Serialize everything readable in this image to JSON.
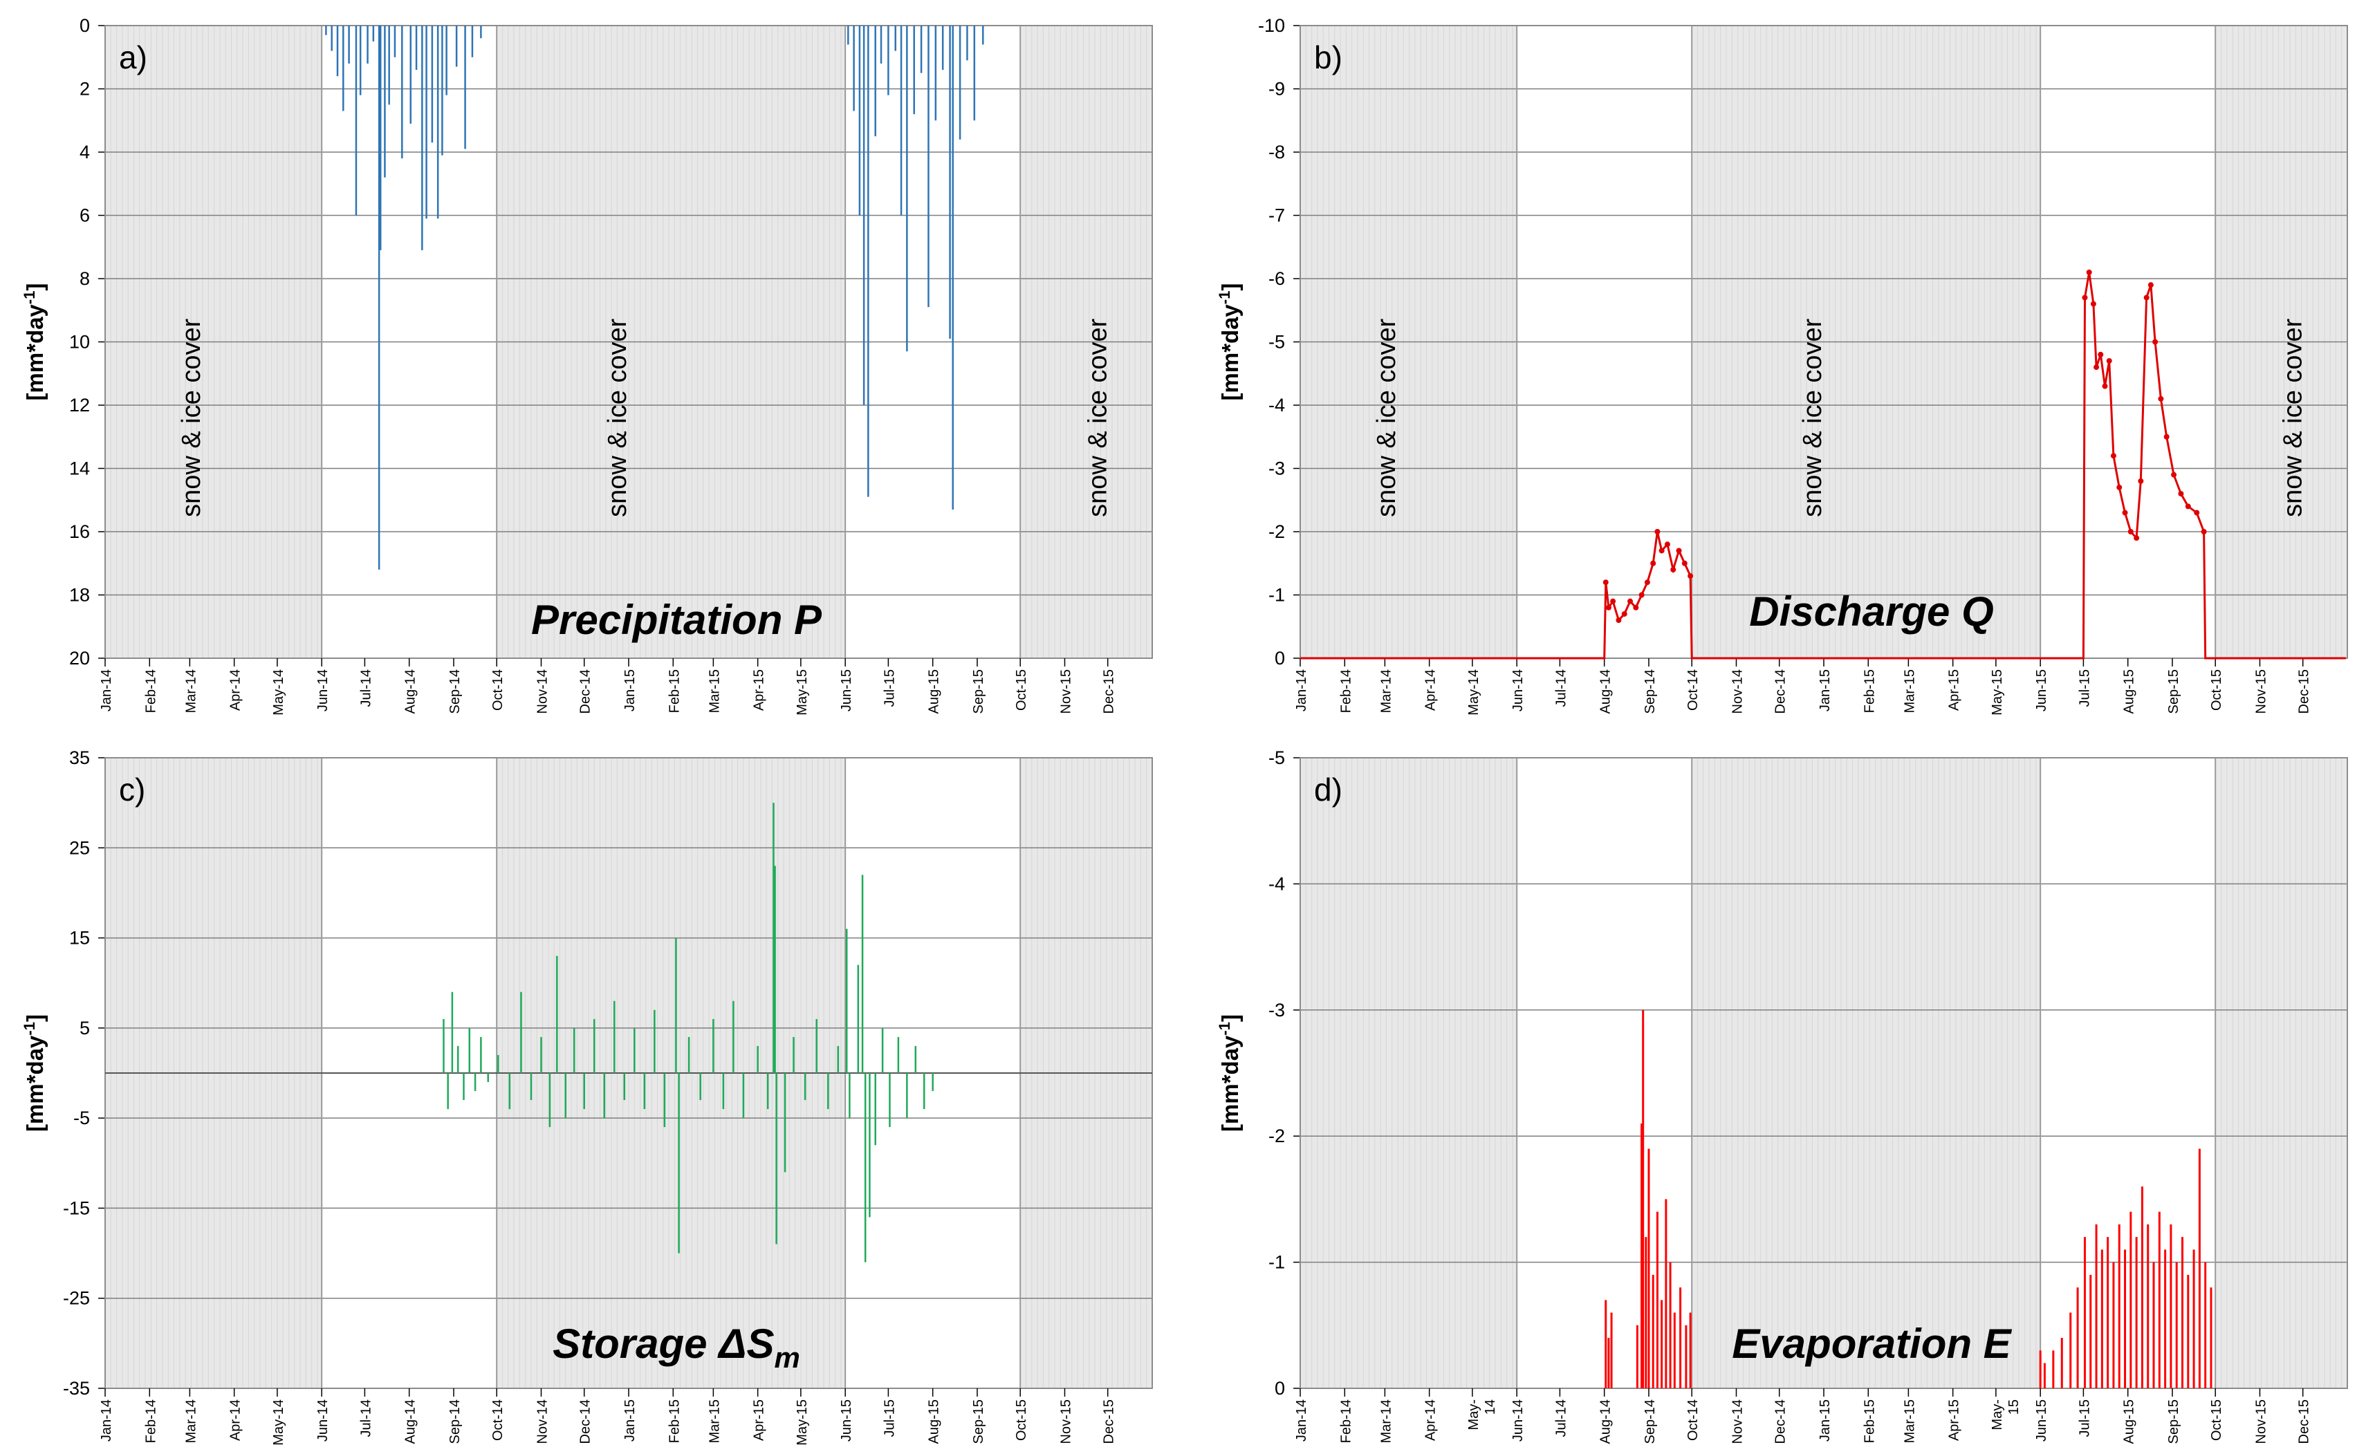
{
  "months": [
    "Jan-14",
    "Feb-14",
    "Mar-14",
    "Apr-14",
    "May-14",
    "Jun-14",
    "Jul-14",
    "Aug-14",
    "Sep-14",
    "Oct-14",
    "Nov-14",
    "Dec-14",
    "Jan-15",
    "Feb-15",
    "Mar-15",
    "Apr-15",
    "May-15",
    "Jun-15",
    "Jul-15",
    "Aug-15",
    "Sep-15",
    "Oct-15",
    "Nov-15",
    "Dec-15"
  ],
  "months_d": [
    "Jan-14",
    "Feb-14",
    "Mar-14",
    "Apr-14",
    "May-\n14",
    "Jun-14",
    "Jul-14",
    "Aug-14",
    "Sep-14",
    "Oct-14",
    "Nov-14",
    "Dec-14",
    "Jan-15",
    "Feb-15",
    "Mar-15",
    "Apr-15",
    "May-\n15",
    "Jun-15",
    "Jul-15",
    "Aug-15",
    "Sep-15",
    "Oct-15",
    "Nov-15",
    "Dec-15"
  ],
  "snow_label": "snow & ice cover",
  "ylabel": "[mm*day-1]",
  "colors": {
    "precip": "#2e75b6",
    "discharge": "#e00000",
    "storage": "#1faa59",
    "evap": "#ff0000",
    "shade": "#e8e8e8",
    "grid": "#7f7f7f"
  },
  "chart_data": [
    {
      "id": "a",
      "type": "bar",
      "panel_label": "a)",
      "title": "Precipitation P",
      "ylim": [
        0,
        20
      ],
      "yaxis_inverted": true,
      "yticks": [
        "0",
        "2",
        "4",
        "6",
        "8",
        "10",
        "12",
        "14",
        "16",
        "18",
        "20"
      ],
      "snow_periods": [
        [
          "2014-01-01",
          "2014-06-01"
        ],
        [
          "2014-10-01",
          "2015-06-01"
        ],
        [
          "2015-10-01",
          "2016-01-01"
        ]
      ],
      "snow_labels": [
        [
          "2014-03-08"
        ],
        [
          "2014-12-30"
        ],
        [
          "2015-11-30"
        ]
      ],
      "series": [
        {
          "points": [
            [
              "2014-06-04",
              0.3
            ],
            [
              "2014-06-08",
              0.8
            ],
            [
              "2014-06-12",
              1.6
            ],
            [
              "2014-06-16",
              2.7
            ],
            [
              "2014-06-20",
              1.2
            ],
            [
              "2014-06-25",
              6.0
            ],
            [
              "2014-06-28",
              2.2
            ],
            [
              "2014-07-03",
              1.2
            ],
            [
              "2014-07-07",
              0.5
            ],
            [
              "2014-07-11",
              17.2
            ],
            [
              "2014-07-12",
              7.1
            ],
            [
              "2014-07-15",
              4.8
            ],
            [
              "2014-07-18",
              2.5
            ],
            [
              "2014-07-22",
              1.0
            ],
            [
              "2014-07-27",
              4.2
            ],
            [
              "2014-08-02",
              3.1
            ],
            [
              "2014-08-06",
              1.4
            ],
            [
              "2014-08-10",
              7.1
            ],
            [
              "2014-08-13",
              6.1
            ],
            [
              "2014-08-17",
              3.7
            ],
            [
              "2014-08-21",
              6.1
            ],
            [
              "2014-08-24",
              4.1
            ],
            [
              "2014-08-27",
              2.2
            ],
            [
              "2014-09-03",
              1.3
            ],
            [
              "2014-09-09",
              3.9
            ],
            [
              "2014-09-14",
              1.0
            ],
            [
              "2014-09-20",
              0.4
            ],
            [
              "2015-06-03",
              0.6
            ],
            [
              "2015-06-07",
              2.7
            ],
            [
              "2015-06-11",
              6.0
            ],
            [
              "2015-06-14",
              12.0
            ],
            [
              "2015-06-17",
              14.9
            ],
            [
              "2015-06-22",
              3.5
            ],
            [
              "2015-06-26",
              1.2
            ],
            [
              "2015-07-01",
              2.2
            ],
            [
              "2015-07-06",
              0.8
            ],
            [
              "2015-07-10",
              6.0
            ],
            [
              "2015-07-14",
              10.3
            ],
            [
              "2015-07-19",
              2.8
            ],
            [
              "2015-07-24",
              1.5
            ],
            [
              "2015-07-29",
              8.9
            ],
            [
              "2015-08-03",
              3.0
            ],
            [
              "2015-08-08",
              1.4
            ],
            [
              "2015-08-13",
              9.9
            ],
            [
              "2015-08-15",
              15.3
            ],
            [
              "2015-08-20",
              3.6
            ],
            [
              "2015-08-25",
              1.1
            ],
            [
              "2015-08-30",
              3.0
            ],
            [
              "2015-09-05",
              0.6
            ]
          ]
        }
      ]
    },
    {
      "id": "b",
      "type": "line",
      "panel_label": "b)",
      "title": "Discharge Q",
      "ylim": [
        -10,
        0
      ],
      "yaxis_inverted": true,
      "yticks": [
        "-10",
        "-9",
        "-8",
        "-7",
        "-6",
        "-5",
        "-4",
        "-3",
        "-2",
        "-1",
        "0"
      ],
      "snow_periods": [
        [
          "2014-01-01",
          "2014-06-01"
        ],
        [
          "2014-10-01",
          "2015-06-01"
        ],
        [
          "2015-10-01",
          "2016-01-01"
        ]
      ],
      "snow_labels": [
        [
          "2014-03-08"
        ],
        [
          "2014-12-30"
        ],
        [
          "2015-11-30"
        ]
      ],
      "series": [
        {
          "points": [
            [
              "2014-01-01",
              0
            ],
            [
              "2014-08-01",
              0
            ],
            [
              "2014-08-02",
              -1.2
            ],
            [
              "2014-08-04",
              -0.8
            ],
            [
              "2014-08-07",
              -0.9
            ],
            [
              "2014-08-11",
              -0.6
            ],
            [
              "2014-08-15",
              -0.7
            ],
            [
              "2014-08-19",
              -0.9
            ],
            [
              "2014-08-23",
              -0.8
            ],
            [
              "2014-08-27",
              -1.0
            ],
            [
              "2014-08-31",
              -1.2
            ],
            [
              "2014-09-04",
              -1.5
            ],
            [
              "2014-09-07",
              -2.0
            ],
            [
              "2014-09-10",
              -1.7
            ],
            [
              "2014-09-14",
              -1.8
            ],
            [
              "2014-09-18",
              -1.4
            ],
            [
              "2014-09-22",
              -1.7
            ],
            [
              "2014-09-26",
              -1.5
            ],
            [
              "2014-09-30",
              -1.3
            ],
            [
              "2014-10-01",
              0
            ],
            [
              "2015-07-01",
              0
            ],
            [
              "2015-07-02",
              -5.7
            ],
            [
              "2015-07-05",
              -6.1
            ],
            [
              "2015-07-08",
              -5.6
            ],
            [
              "2015-07-10",
              -4.6
            ],
            [
              "2015-07-13",
              -4.8
            ],
            [
              "2015-07-16",
              -4.3
            ],
            [
              "2015-07-19",
              -4.7
            ],
            [
              "2015-07-22",
              -3.2
            ],
            [
              "2015-07-26",
              -2.7
            ],
            [
              "2015-07-30",
              -2.3
            ],
            [
              "2015-08-03",
              -2.0
            ],
            [
              "2015-08-07",
              -1.9
            ],
            [
              "2015-08-10",
              -2.8
            ],
            [
              "2015-08-14",
              -5.7
            ],
            [
              "2015-08-17",
              -5.9
            ],
            [
              "2015-08-20",
              -5.0
            ],
            [
              "2015-08-24",
              -4.1
            ],
            [
              "2015-08-28",
              -3.5
            ],
            [
              "2015-09-02",
              -2.9
            ],
            [
              "2015-09-07",
              -2.6
            ],
            [
              "2015-09-12",
              -2.4
            ],
            [
              "2015-09-18",
              -2.3
            ],
            [
              "2015-09-23",
              -2.0
            ],
            [
              "2015-09-24",
              0
            ],
            [
              "2015-12-31",
              0
            ]
          ]
        }
      ]
    },
    {
      "id": "c",
      "type": "bar",
      "panel_label": "c)",
      "title": "Storage ΔS",
      "title_sub": "m",
      "ylim": [
        -35,
        35
      ],
      "baseline": 0,
      "yticks": [
        "35",
        "25",
        "15",
        "5",
        "-5",
        "-15",
        "-25",
        "-35"
      ],
      "snow_periods": [
        [
          "2014-01-01",
          "2014-06-01"
        ],
        [
          "2014-10-01",
          "2015-06-01"
        ],
        [
          "2015-10-01",
          "2016-01-01"
        ]
      ],
      "snow_labels": [],
      "series": [
        {
          "points": [
            [
              "2014-08-25",
              6
            ],
            [
              "2014-08-28",
              -4
            ],
            [
              "2014-08-31",
              9
            ],
            [
              "2014-09-04",
              3
            ],
            [
              "2014-09-08",
              -3
            ],
            [
              "2014-09-12",
              5
            ],
            [
              "2014-09-16",
              -2
            ],
            [
              "2014-09-20",
              4
            ],
            [
              "2014-09-25",
              -1
            ],
            [
              "2014-10-02",
              2
            ],
            [
              "2014-10-10",
              -4
            ],
            [
              "2014-10-18",
              9
            ],
            [
              "2014-10-25",
              -3
            ],
            [
              "2014-11-01",
              4
            ],
            [
              "2014-11-07",
              -6
            ],
            [
              "2014-11-12",
              13
            ],
            [
              "2014-11-18",
              -5
            ],
            [
              "2014-11-24",
              5
            ],
            [
              "2014-12-01",
              -4
            ],
            [
              "2014-12-08",
              6
            ],
            [
              "2014-12-15",
              -5
            ],
            [
              "2014-12-22",
              8
            ],
            [
              "2014-12-29",
              -3
            ],
            [
              "2015-01-05",
              5
            ],
            [
              "2015-01-12",
              -4
            ],
            [
              "2015-01-19",
              7
            ],
            [
              "2015-01-26",
              -6
            ],
            [
              "2015-02-03",
              15
            ],
            [
              "2015-02-05",
              -20
            ],
            [
              "2015-02-12",
              4
            ],
            [
              "2015-02-20",
              -3
            ],
            [
              "2015-03-01",
              6
            ],
            [
              "2015-03-08",
              -4
            ],
            [
              "2015-03-15",
              8
            ],
            [
              "2015-03-22",
              -5
            ],
            [
              "2015-04-01",
              3
            ],
            [
              "2015-04-08",
              -4
            ],
            [
              "2015-04-12",
              30
            ],
            [
              "2015-04-13",
              23
            ],
            [
              "2015-04-14",
              -19
            ],
            [
              "2015-04-20",
              -11
            ],
            [
              "2015-04-26",
              4
            ],
            [
              "2015-05-04",
              -3
            ],
            [
              "2015-05-12",
              6
            ],
            [
              "2015-05-20",
              -4
            ],
            [
              "2015-05-27",
              3
            ],
            [
              "2015-06-02",
              16
            ],
            [
              "2015-06-04",
              -5
            ],
            [
              "2015-06-10",
              12
            ],
            [
              "2015-06-13",
              22
            ],
            [
              "2015-06-15",
              -21
            ],
            [
              "2015-06-18",
              -16
            ],
            [
              "2015-06-22",
              -8
            ],
            [
              "2015-06-27",
              5
            ],
            [
              "2015-07-02",
              -6
            ],
            [
              "2015-07-08",
              4
            ],
            [
              "2015-07-14",
              -5
            ],
            [
              "2015-07-20",
              3
            ],
            [
              "2015-07-26",
              -4
            ],
            [
              "2015-08-01",
              -2
            ]
          ]
        }
      ]
    },
    {
      "id": "d",
      "type": "bar",
      "panel_label": "d)",
      "title": "Evaporation E",
      "ylim": [
        -5,
        0
      ],
      "yaxis_inverted": true,
      "yticks": [
        "-5",
        "-4",
        "-3",
        "-2",
        "-1",
        "0"
      ],
      "snow_periods": [
        [
          "2014-01-01",
          "2014-06-01"
        ],
        [
          "2014-10-01",
          "2015-06-01"
        ],
        [
          "2015-10-01",
          "2016-01-01"
        ]
      ],
      "snow_labels": [],
      "series": [
        {
          "points": [
            [
              "2014-08-02",
              -0.7
            ],
            [
              "2014-08-04",
              -0.4
            ],
            [
              "2014-08-06",
              -0.6
            ],
            [
              "2014-08-24",
              -0.5
            ],
            [
              "2014-08-27",
              -2.1
            ],
            [
              "2014-08-28",
              -3.0
            ],
            [
              "2014-08-30",
              -1.2
            ],
            [
              "2014-09-01",
              -1.9
            ],
            [
              "2014-09-04",
              -0.9
            ],
            [
              "2014-09-07",
              -1.4
            ],
            [
              "2014-09-10",
              -0.7
            ],
            [
              "2014-09-13",
              -1.5
            ],
            [
              "2014-09-16",
              -1.0
            ],
            [
              "2014-09-19",
              -0.6
            ],
            [
              "2014-09-23",
              -0.8
            ],
            [
              "2014-09-27",
              -0.5
            ],
            [
              "2014-09-30",
              -0.6
            ],
            [
              "2015-06-01",
              -0.3
            ],
            [
              "2015-06-04",
              -0.2
            ],
            [
              "2015-06-10",
              -0.3
            ],
            [
              "2015-06-16",
              -0.4
            ],
            [
              "2015-06-22",
              -0.6
            ],
            [
              "2015-06-27",
              -0.8
            ],
            [
              "2015-07-02",
              -1.2
            ],
            [
              "2015-07-06",
              -0.9
            ],
            [
              "2015-07-10",
              -1.3
            ],
            [
              "2015-07-14",
              -1.1
            ],
            [
              "2015-07-18",
              -1.2
            ],
            [
              "2015-07-22",
              -1.0
            ],
            [
              "2015-07-26",
              -1.3
            ],
            [
              "2015-07-30",
              -1.1
            ],
            [
              "2015-08-03",
              -1.4
            ],
            [
              "2015-08-07",
              -1.2
            ],
            [
              "2015-08-11",
              -1.6
            ],
            [
              "2015-08-15",
              -1.3
            ],
            [
              "2015-08-19",
              -1.0
            ],
            [
              "2015-08-23",
              -1.4
            ],
            [
              "2015-08-27",
              -1.1
            ],
            [
              "2015-08-31",
              -1.3
            ],
            [
              "2015-09-04",
              -1.0
            ],
            [
              "2015-09-08",
              -1.2
            ],
            [
              "2015-09-12",
              -0.9
            ],
            [
              "2015-09-16",
              -1.1
            ],
            [
              "2015-09-20",
              -1.9
            ],
            [
              "2015-09-24",
              -1.0
            ],
            [
              "2015-09-28",
              -0.8
            ]
          ]
        }
      ]
    }
  ]
}
